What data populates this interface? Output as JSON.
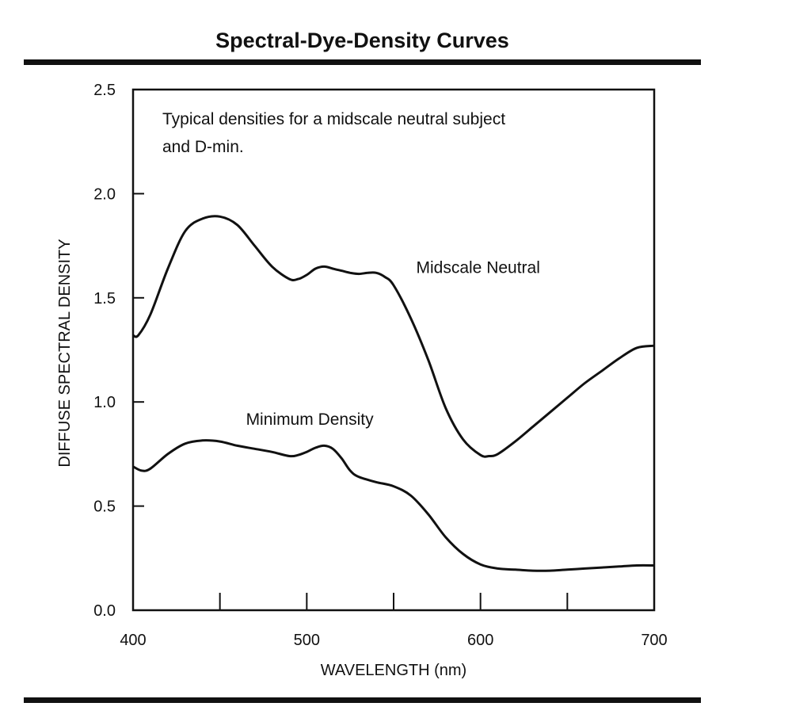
{
  "chart_data": {
    "type": "line",
    "title": "Spectral-Dye-Density Curves",
    "annotation_lines": [
      "Typical densities for a midscale neutral subject",
      "and D-min."
    ],
    "xlabel": "WAVELENGTH (nm)",
    "ylabel": "DIFFUSE SPECTRAL DENSITY",
    "xlim": [
      400,
      700
    ],
    "ylim": [
      0,
      2.5
    ],
    "xticks_labeled": [
      400,
      500,
      600,
      700
    ],
    "xticks_minor": [
      450,
      550,
      650
    ],
    "yticks": [
      0.0,
      0.5,
      1.0,
      1.5,
      2.0,
      2.5
    ],
    "grid": false,
    "series": [
      {
        "name": "Midscale Neutral",
        "x": [
          400,
          403,
          410,
          420,
          430,
          440,
          450,
          460,
          470,
          480,
          490,
          495,
          500,
          505,
          510,
          515,
          520,
          525,
          530,
          535,
          540,
          545,
          550,
          560,
          570,
          580,
          590,
          600,
          605,
          610,
          620,
          630,
          640,
          650,
          660,
          670,
          680,
          690,
          700
        ],
        "y": [
          1.32,
          1.32,
          1.42,
          1.64,
          1.82,
          1.88,
          1.89,
          1.85,
          1.75,
          1.65,
          1.59,
          1.59,
          1.61,
          1.64,
          1.65,
          1.64,
          1.63,
          1.62,
          1.615,
          1.62,
          1.62,
          1.6,
          1.56,
          1.4,
          1.2,
          0.97,
          0.82,
          0.745,
          0.74,
          0.75,
          0.81,
          0.88,
          0.95,
          1.02,
          1.09,
          1.15,
          1.21,
          1.26,
          1.27
        ]
      },
      {
        "name": "Minimum Density",
        "x": [
          400,
          405,
          410,
          420,
          430,
          440,
          450,
          460,
          470,
          480,
          490,
          495,
          500,
          505,
          510,
          515,
          520,
          525,
          530,
          540,
          550,
          560,
          570,
          580,
          590,
          600,
          610,
          620,
          630,
          640,
          650,
          660,
          670,
          680,
          690,
          700
        ],
        "y": [
          0.69,
          0.67,
          0.68,
          0.75,
          0.8,
          0.815,
          0.81,
          0.79,
          0.775,
          0.76,
          0.74,
          0.745,
          0.76,
          0.78,
          0.79,
          0.775,
          0.73,
          0.67,
          0.64,
          0.615,
          0.595,
          0.55,
          0.46,
          0.35,
          0.27,
          0.22,
          0.2,
          0.195,
          0.19,
          0.19,
          0.195,
          0.2,
          0.205,
          0.21,
          0.215,
          0.215
        ]
      }
    ],
    "series_labels": [
      {
        "text": "Midscale Neutral",
        "x": 563,
        "y": 1.62
      },
      {
        "text": "Minimum Density",
        "x": 465,
        "y": 0.89
      }
    ]
  }
}
